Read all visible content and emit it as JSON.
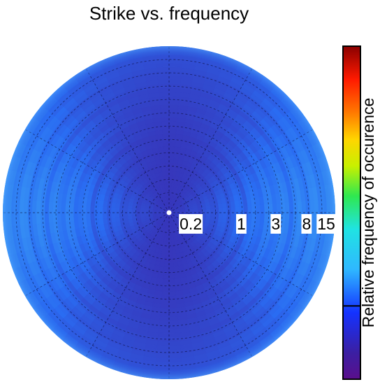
{
  "title": "Strike vs. frequency",
  "chart_data": {
    "type": "heatmap",
    "projection": "polar",
    "title": "Strike vs. frequency",
    "radial_tick_labels": [
      "0.2",
      "1",
      "3",
      "8",
      "15"
    ],
    "radial_ticks": [
      0.2,
      1,
      3,
      8,
      15
    ],
    "radial_axis_scale": "log",
    "angular_grid": true,
    "radial_grid": true,
    "colorbar": {
      "label": "Relative frequency of occurence",
      "colormap": "jet",
      "placement": "right",
      "tick_at_fraction": 0.22
    },
    "dominant_strike_directions_deg": [
      0,
      180
    ],
    "background_level": 0.12,
    "peak_level": 0.32
  },
  "colors": {
    "low": "#3b1fa3",
    "mid": "#2a6cf2",
    "high": "#3aa0f5"
  }
}
